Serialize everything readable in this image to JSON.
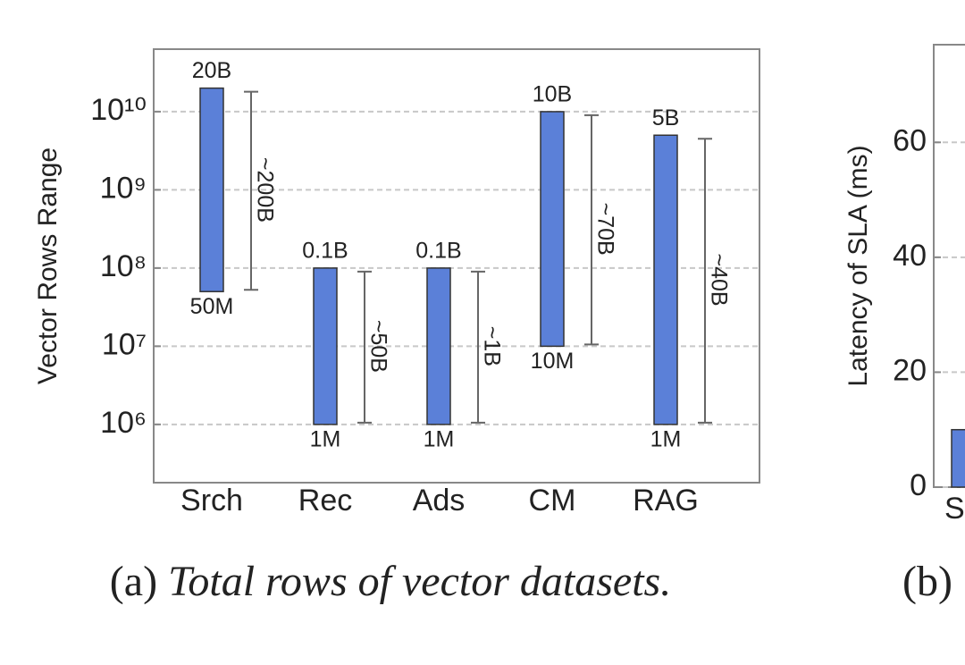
{
  "chart_data": [
    {
      "type": "range_bar",
      "y_label": "Vector Rows Range",
      "categories": [
        "Srch",
        "Rec",
        "Ads",
        "CM",
        "RAG"
      ],
      "low": [
        50000000,
        1000000,
        1000000,
        10000000,
        1000000
      ],
      "low_labels": [
        "50M",
        "1M",
        "1M",
        "10M",
        "1M"
      ],
      "high": [
        20000000000,
        100000000,
        100000000,
        10000000000,
        5000000000
      ],
      "high_labels": [
        "20B",
        "0.1B",
        "0.1B",
        "10B",
        "5B"
      ],
      "annotations": [
        "~200B",
        "~50B",
        "~1B",
        "~70B",
        "~40B"
      ],
      "color": "#5b80d8",
      "log_y": true,
      "ylim": [
        180000,
        63000000000
      ],
      "yticks": [
        {
          "value": 1000000,
          "label": "10⁶"
        },
        {
          "value": 10000000,
          "label": "10⁷"
        },
        {
          "value": 100000000,
          "label": "10⁸"
        },
        {
          "value": 1000000000,
          "label": "10⁹"
        },
        {
          "value": 10000000000,
          "label": "10¹⁰"
        }
      ],
      "grid": true,
      "caption_label": "(a)",
      "caption": "Total rows of vector datasets."
    },
    {
      "type": "bar",
      "y_label": "Latency of SLA (ms)",
      "categories": [
        "S"
      ],
      "values": [
        10
      ],
      "color": "#5b80d8",
      "ylim": [
        0,
        77
      ],
      "yticks": [
        0,
        20,
        40,
        60
      ],
      "grid": true,
      "caption_label": "(b)"
    }
  ]
}
